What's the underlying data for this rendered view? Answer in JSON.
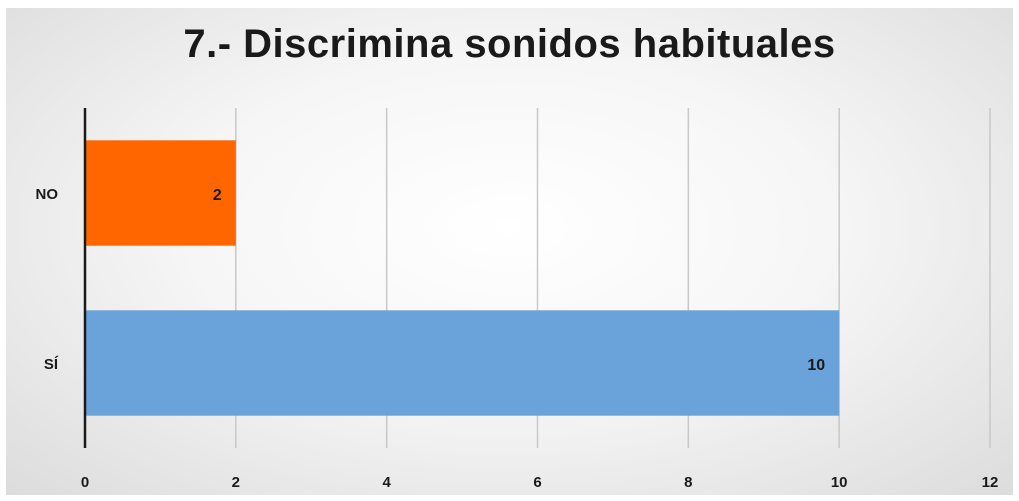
{
  "chart_data": {
    "type": "bar",
    "orientation": "horizontal",
    "title": "7.- Discrimina sonidos habituales",
    "categories": [
      "NO",
      "SÍ"
    ],
    "values": [
      2,
      10
    ],
    "colors": [
      "#ff6600",
      "#6aa3d9"
    ],
    "xlim": [
      0,
      12
    ],
    "xticks": [
      0,
      2,
      4,
      6,
      8,
      10,
      12
    ],
    "xlabel": "",
    "ylabel": "",
    "grid": true,
    "legend": "none"
  }
}
